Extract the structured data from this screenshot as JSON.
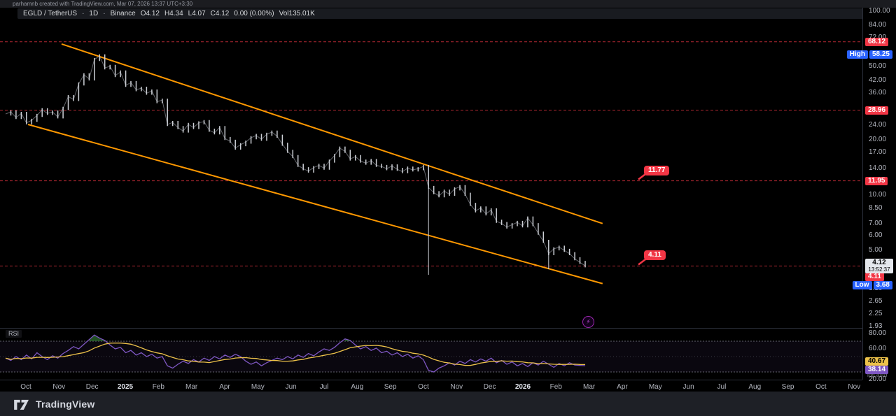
{
  "attribution": "parhamnb created with TradingView.com, Mar 07, 2026 13:37 UTC+3:30",
  "header": {
    "symbol": "EGLD / TetherUS",
    "separator": "·",
    "interval": "1D",
    "exchange": "Binance",
    "open": "O4.12",
    "high": "H4.34",
    "low": "L4.07",
    "close": "C4.12",
    "change": "0.00 (0.00%)",
    "volume": "Vol135.01K"
  },
  "colors": {
    "level_red": "#b22833",
    "tag_red": "#f23645",
    "blue": "#2962ff",
    "orange": "#ff9800",
    "candle": "#cdd0d6",
    "candle_line": "#9598a1",
    "rsi_purple": "#7e57c2",
    "rsi_ma_yellow": "#edc24a",
    "rsi_band_line": "#787b86",
    "rsi_band_fill": "rgba(126,87,194,0.08)",
    "overbought_green": "rgba(56,142,60,0.55)",
    "separator": "#2a2e39"
  },
  "chart_data": {
    "type": "candlestick",
    "title": "EGLD / TetherUS · 1D · Binance",
    "y_scale": "log",
    "y_range": [
      1.93,
      100
    ],
    "x_range": [
      "Oct 2024",
      "Nov 2026"
    ],
    "last_price": 4.12,
    "visible_high": 58.25,
    "visible_low": 3.68,
    "prices": [
      27.6,
      28.3,
      26.4,
      27.8,
      24.7,
      25.5,
      27.1,
      29.1,
      27.8,
      28.3,
      26.6,
      29.6,
      34.3,
      33.1,
      40.2,
      45.1,
      42.8,
      54.6,
      57.1,
      49.2,
      50.1,
      44.7,
      46.7,
      39.5,
      40.9,
      37.4,
      38.1,
      35.8,
      36.8,
      32.2,
      32.8,
      24.2,
      24.8,
      23.3,
      22.3,
      24.2,
      23.3,
      24.7,
      25.1,
      22.5,
      21.8,
      23.3,
      20.3,
      19.6,
      18.0,
      18.8,
      19.4,
      20.5,
      21.1,
      20.1,
      21.4,
      22.0,
      20.9,
      18.9,
      17.3,
      16.2,
      14.5,
      13.9,
      13.5,
      14.1,
      14.5,
      14.0,
      15.3,
      16.4,
      18.0,
      17.3,
      15.7,
      16.2,
      15.3,
      14.9,
      15.4,
      14.5,
      14.3,
      13.9,
      14.4,
      13.8,
      13.4,
      14.0,
      13.7,
      13.9,
      14.3,
      11.0,
      10.3,
      9.9,
      10.5,
      10.1,
      10.8,
      11.1,
      10.1,
      8.9,
      8.2,
      8.5,
      7.9,
      8.3,
      7.2,
      7.0,
      6.7,
      6.9,
      7.1,
      6.8,
      7.5,
      6.9,
      6.2,
      5.6,
      4.8,
      5.1,
      5.2,
      5.0,
      4.8,
      4.5,
      4.3,
      4.12
    ],
    "special_wicks": [
      {
        "i": 18,
        "high": 58.25
      },
      {
        "i": 81,
        "low": 3.68
      },
      {
        "i": 104,
        "low": 3.95
      }
    ],
    "levels": [
      {
        "label": "68.12",
        "price": 68.12
      },
      {
        "label": "28.96",
        "price": 28.96
      },
      {
        "label": "11.95",
        "price": 11.95
      },
      {
        "label": "4.11",
        "price": 4.11,
        "stacked": true
      }
    ],
    "callouts": [
      {
        "text": "11.77",
        "anchor": 11.95
      },
      {
        "text": "4.11",
        "anchor": 4.11
      }
    ],
    "channel": {
      "upper": {
        "t1": 0.0966,
        "p1": 66.3,
        "t2": 1.03,
        "p2": 7.0
      },
      "lower": {
        "t1": 0.0386,
        "p1": 24.2,
        "t2": 1.03,
        "p2": 3.3
      }
    },
    "price_ticks": [
      "100.00",
      "84.00",
      "72.00",
      "50.00",
      "42.00",
      "36.00",
      "24.00",
      "20.00",
      "17.00",
      "14.00",
      "10.00",
      "8.50",
      "7.00",
      "6.00",
      "5.00",
      "3.10",
      "2.65",
      "2.25",
      "1.93"
    ],
    "rsi": {
      "label": "RSI",
      "values": [
        48,
        45,
        50,
        46,
        52,
        47,
        55,
        50,
        46,
        51,
        48,
        54,
        58,
        63,
        60,
        66,
        72,
        78,
        74,
        71,
        65,
        60,
        62,
        55,
        58,
        52,
        55,
        50,
        53,
        48,
        50,
        38,
        35,
        40,
        44,
        41,
        46,
        43,
        48,
        45,
        50,
        47,
        52,
        49,
        53,
        50,
        44,
        40,
        43,
        38,
        42,
        45,
        48,
        46,
        50,
        47,
        52,
        49,
        54,
        51,
        56,
        60,
        58,
        62,
        68,
        73,
        71,
        65,
        60,
        63,
        58,
        61,
        55,
        57,
        52,
        55,
        50,
        53,
        48,
        51,
        46,
        32,
        30,
        35,
        38,
        42,
        39,
        44,
        41,
        46,
        43,
        47,
        44,
        48,
        42,
        45,
        40,
        43,
        38,
        41,
        37,
        42,
        39,
        44,
        40,
        36,
        41,
        38,
        42,
        39,
        38.5,
        38.14
      ],
      "bands": {
        "upper": 70,
        "middle": 50,
        "lower": 30
      },
      "axis_ticks": [
        {
          "text": "80.00",
          "v": 80
        },
        {
          "text": "60.00",
          "v": 60
        },
        {
          "text": "20.00",
          "v": 20
        }
      ],
      "ma_value_label": "40.67",
      "value_label": "38.14"
    },
    "time_labels": [
      "Oct",
      "Nov",
      "Dec",
      "2025",
      "Feb",
      "Mar",
      "Apr",
      "May",
      "Jun",
      "Jul",
      "Aug",
      "Sep",
      "Oct",
      "Nov",
      "Dec",
      "2026",
      "Feb",
      "Mar",
      "Apr",
      "May",
      "Jun",
      "Jul",
      "Aug",
      "Sep",
      "Oct",
      "Nov"
    ]
  },
  "price_axis": {
    "current": {
      "price": "4.12",
      "countdown": "13:52:37"
    },
    "high_marker": {
      "prefix": "High",
      "value": "58.25",
      "price": 58.25
    },
    "low_marker": {
      "prefix": "Low",
      "value": "3.68"
    },
    "mode": "log auto"
  },
  "marker": {
    "lightning": "⚡"
  },
  "footer": {
    "brand": "TradingView"
  }
}
